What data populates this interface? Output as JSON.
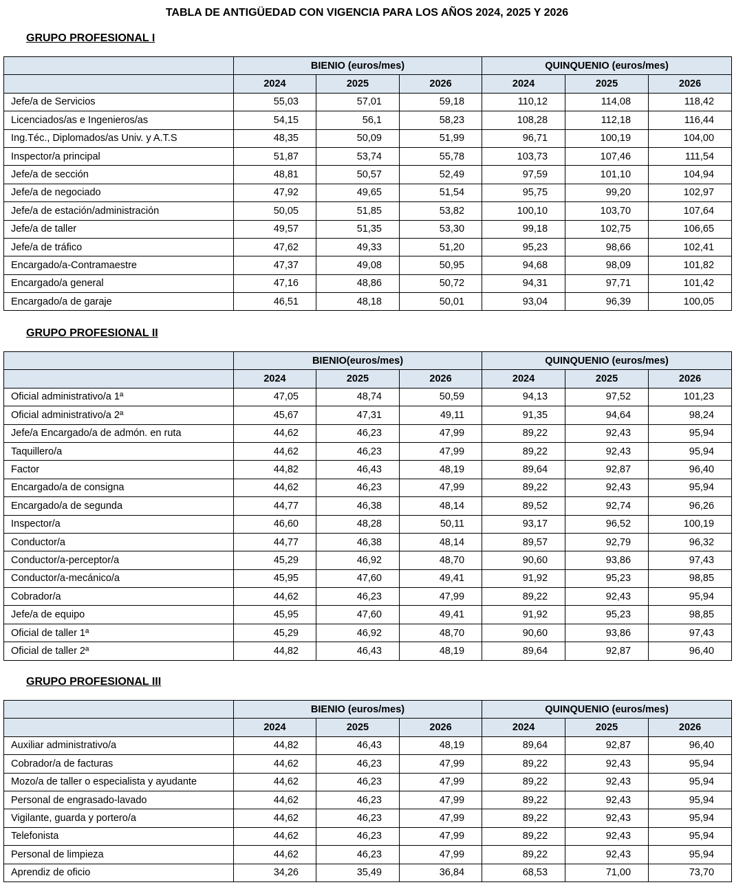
{
  "title": "TABLA DE ANTIGÜEDAD CON VIGENCIA PARA LOS AÑOS 2024, 2025 Y 2026",
  "groups": [
    {
      "title": "GRUPO PROFESIONAL I",
      "bienio": "BIENIO (euros/mes)",
      "quinquenio": "QUINQUENIO (euros/mes)",
      "years": [
        "2024",
        "2025",
        "2026",
        "2024",
        "2025",
        "2026"
      ],
      "rows": [
        [
          "Jefe/a de Servicios",
          "55,03",
          "57,01",
          "59,18",
          "110,12",
          "114,08",
          "118,42"
        ],
        [
          "Licenciados/as e Ingenieros/as",
          "54,15",
          "56,1",
          "58,23",
          "108,28",
          "112,18",
          "116,44"
        ],
        [
          "Ing.Téc., Diplomados/as Univ. y A.T.S",
          "48,35",
          "50,09",
          "51,99",
          "96,71",
          "100,19",
          "104,00"
        ],
        [
          "Inspector/a principal",
          "51,87",
          "53,74",
          "55,78",
          "103,73",
          "107,46",
          "111,54"
        ],
        [
          "Jefe/a de sección",
          "48,81",
          "50,57",
          "52,49",
          "97,59",
          "101,10",
          "104,94"
        ],
        [
          "Jefe/a de negociado",
          "47,92",
          "49,65",
          "51,54",
          "95,75",
          "99,20",
          "102,97"
        ],
        [
          "Jefe/a de estación/administración",
          "50,05",
          "51,85",
          "53,82",
          "100,10",
          "103,70",
          "107,64"
        ],
        [
          "Jefe/a de taller",
          "49,57",
          "51,35",
          "53,30",
          "99,18",
          "102,75",
          "106,65"
        ],
        [
          "Jefe/a de tráfico",
          "47,62",
          "49,33",
          "51,20",
          "95,23",
          "98,66",
          "102,41"
        ],
        [
          "Encargado/a-Contramaestre",
          "47,37",
          "49,08",
          "50,95",
          "94,68",
          "98,09",
          "101,82"
        ],
        [
          "Encargado/a general",
          "47,16",
          "48,86",
          "50,72",
          "94,31",
          "97,71",
          "101,42"
        ],
        [
          "Encargado/a de garaje",
          "46,51",
          "48,18",
          "50,01",
          "93,04",
          "96,39",
          "100,05"
        ]
      ]
    },
    {
      "title": "GRUPO PROFESIONAL II",
      "bienio": "BIENIO(euros/mes)",
      "quinquenio": "QUINQUENIO (euros/mes)",
      "years": [
        "2024",
        "2025",
        "2026",
        "2024",
        "2025",
        "2026"
      ],
      "rows": [
        [
          "Oficial administrativo/a 1ª",
          "47,05",
          "48,74",
          "50,59",
          "94,13",
          "97,52",
          "101,23"
        ],
        [
          "Oficial administrativo/a 2ª",
          "45,67",
          "47,31",
          "49,11",
          "91,35",
          "94,64",
          "98,24"
        ],
        [
          "Jefe/a Encargado/a de admón. en ruta",
          "44,62",
          "46,23",
          "47,99",
          "89,22",
          "92,43",
          "95,94"
        ],
        [
          "Taquillero/a",
          "44,62",
          "46,23",
          "47,99",
          "89,22",
          "92,43",
          "95,94"
        ],
        [
          "Factor",
          "44,82",
          "46,43",
          "48,19",
          "89,64",
          "92,87",
          "96,40"
        ],
        [
          "Encargado/a de consigna",
          "44,62",
          "46,23",
          "47,99",
          "89,22",
          "92,43",
          "95,94"
        ],
        [
          "Encargado/a de segunda",
          "44,77",
          "46,38",
          "48,14",
          "89,52",
          "92,74",
          "96,26"
        ],
        [
          "Inspector/a",
          "46,60",
          "48,28",
          "50,11",
          "93,17",
          "96,52",
          "100,19"
        ],
        [
          "Conductor/a",
          "44,77",
          "46,38",
          "48,14",
          "89,57",
          "92,79",
          "96,32"
        ],
        [
          "Conductor/a-perceptor/a",
          "45,29",
          "46,92",
          "48,70",
          "90,60",
          "93,86",
          "97,43"
        ],
        [
          "Conductor/a-mecánico/a",
          "45,95",
          "47,60",
          "49,41",
          "91,92",
          "95,23",
          "98,85"
        ],
        [
          "Cobrador/a",
          "44,62",
          "46,23",
          "47,99",
          "89,22",
          "92,43",
          "95,94"
        ],
        [
          "Jefe/a de equipo",
          "45,95",
          "47,60",
          "49,41",
          "91,92",
          "95,23",
          "98,85"
        ],
        [
          "Oficial de taller 1ª",
          "45,29",
          "46,92",
          "48,70",
          "90,60",
          "93,86",
          "97,43"
        ],
        [
          "Oficial de taller 2ª",
          "44,82",
          "46,43",
          "48,19",
          "89,64",
          "92,87",
          "96,40"
        ]
      ]
    },
    {
      "title": "GRUPO PROFESIONAL III",
      "bienio": "BIENIO (euros/mes)",
      "quinquenio": "QUINQUENIO (euros/mes)",
      "years": [
        "2024",
        "2025",
        "2026",
        "2024",
        "2025",
        "2026"
      ],
      "rows": [
        [
          "Auxiliar administrativo/a",
          "44,82",
          "46,43",
          "48,19",
          "89,64",
          "92,87",
          "96,40"
        ],
        [
          "Cobrador/a de facturas",
          "44,62",
          "46,23",
          "47,99",
          "89,22",
          "92,43",
          "95,94"
        ],
        [
          "Mozo/a de taller o especialista y ayudante",
          "44,62",
          "46,23",
          "47,99",
          "89,22",
          "92,43",
          "95,94"
        ],
        [
          "Personal de engrasado-lavado",
          "44,62",
          "46,23",
          "47,99",
          "89,22",
          "92,43",
          "95,94"
        ],
        [
          "Vigilante, guarda y portero/a",
          "44,62",
          "46,23",
          "47,99",
          "89,22",
          "92,43",
          "95,94"
        ],
        [
          "Telefonista",
          "44,62",
          "46,23",
          "47,99",
          "89,22",
          "92,43",
          "95,94"
        ],
        [
          "Personal de limpieza",
          "44,62",
          "46,23",
          "47,99",
          "89,22",
          "92,43",
          "95,94"
        ],
        [
          "Aprendiz de oficio",
          "34,26",
          "35,49",
          "36,84",
          "68,53",
          "71,00",
          "73,70"
        ]
      ]
    }
  ]
}
